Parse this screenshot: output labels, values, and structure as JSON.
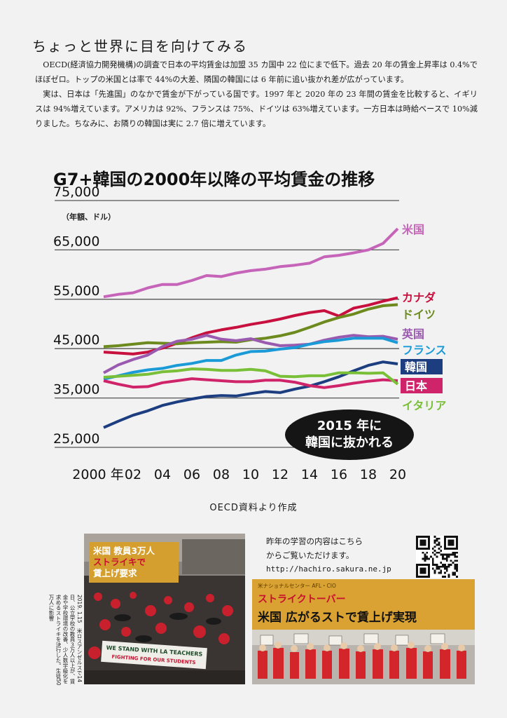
{
  "heading": "ちょっと世界に目を向けてみる",
  "paragraphs": [
    "OECD(経済協力開発機構)の調査で日本の平均賃金は加盟 35 カ国中 22 位にまで低下。過去 20 年の賃金上昇率は 0.4%でほぼゼロ。トップの米国とは率で 44%の大差、隣国の韓国には 6 年前に追い抜かれ差が広がっています。",
    "実は、日本は「先進国」のなかで賃金が下がっている国です。1997 年と 2020 年の 23 年間の賃金を比較すると、イギリスは 94%増えています。アメリカは 92%、フランスは 75%、ドイツは 63%増えています。一方日本は時給ベースで 10%減りました。ちなみに、お隣りの韓国は実に 2.7 倍に増えています。"
  ],
  "chart_data": {
    "type": "line",
    "title": "G7+韓国の2000年以降の平均賃金の推移",
    "unit_label": "（年額、ドル）",
    "ylim": [
      25000,
      75000
    ],
    "y_ticks": [
      75000,
      65000,
      55000,
      45000,
      35000,
      25000
    ],
    "y_tick_labels": [
      "75,000",
      "65,000",
      "55,000",
      "45,000",
      "35,000",
      "25,000"
    ],
    "x": [
      2000,
      2001,
      2002,
      2003,
      2004,
      2005,
      2006,
      2007,
      2008,
      2009,
      2010,
      2011,
      2012,
      2013,
      2014,
      2015,
      2016,
      2017,
      2018,
      2019,
      2020
    ],
    "x_ticks": [
      2000,
      2002,
      2004,
      2006,
      2008,
      2010,
      2012,
      2014,
      2016,
      2018,
      2020
    ],
    "x_tick_labels": [
      "2000 年",
      "02",
      "04",
      "06",
      "08",
      "10",
      "12",
      "14",
      "16",
      "18",
      "20"
    ],
    "series": [
      {
        "name": "米国",
        "color": "#c564b8",
        "values": [
          55500,
          56000,
          56300,
          57300,
          58000,
          58000,
          58800,
          59800,
          59600,
          60300,
          60800,
          61100,
          61600,
          61900,
          62300,
          63600,
          63900,
          64400,
          65000,
          66300,
          69300
        ]
      },
      {
        "name": "カナダ",
        "color": "#c8103e",
        "values": [
          44300,
          44100,
          43900,
          44300,
          45100,
          46100,
          47200,
          48200,
          48800,
          49300,
          49900,
          50400,
          51000,
          51700,
          52300,
          52700,
          51600,
          53200,
          53800,
          54600,
          55300
        ]
      },
      {
        "name": "ドイツ",
        "color": "#6c8a1e",
        "values": [
          45400,
          45600,
          45900,
          46200,
          46100,
          46000,
          46200,
          46300,
          46400,
          46300,
          46800,
          47100,
          47600,
          48300,
          49300,
          50400,
          51300,
          52000,
          53000,
          53700,
          53900
        ]
      },
      {
        "name": "英国",
        "color": "#9a5ab0",
        "values": [
          40100,
          41700,
          42800,
          43700,
          45400,
          46500,
          46900,
          47700,
          46900,
          46600,
          47000,
          46200,
          45600,
          45700,
          45900,
          46700,
          47300,
          47700,
          47400,
          47500,
          46900
        ]
      },
      {
        "name": "フランス",
        "color": "#1a9ad6",
        "values": [
          38800,
          39500,
          40200,
          40700,
          41000,
          41600,
          42000,
          42600,
          42600,
          43700,
          44400,
          44500,
          44900,
          45200,
          45900,
          46400,
          46700,
          47100,
          47100,
          47100,
          46200
        ]
      },
      {
        "name": "韓国",
        "color": "#1c3d80",
        "values": [
          29000,
          30300,
          31500,
          32400,
          33500,
          34200,
          34800,
          35300,
          35500,
          35400,
          35900,
          36300,
          36100,
          36800,
          37400,
          38300,
          39300,
          40500,
          41600,
          42300,
          41900
        ]
      },
      {
        "name": "日本",
        "color": "#d0246a",
        "values": [
          38500,
          37800,
          37200,
          37300,
          38100,
          38500,
          38900,
          38700,
          38500,
          38300,
          38300,
          38600,
          38600,
          38200,
          37500,
          37100,
          37500,
          38000,
          38400,
          38700,
          38500
        ]
      },
      {
        "name": "イタリア",
        "color": "#7abf38",
        "values": [
          39200,
          39400,
          39600,
          39800,
          40300,
          40500,
          40900,
          40800,
          40600,
          40600,
          40800,
          40500,
          39400,
          39300,
          39500,
          39500,
          40100,
          40100,
          40000,
          40100,
          37800
        ]
      }
    ],
    "callout": [
      "2015 年に",
      "韓国に抜かれる"
    ],
    "grid": true
  },
  "source": "OECD資料より作成",
  "photo_caption": {
    "line1": "米国 教員3万人",
    "line2": "ストライキで",
    "line3": "賃上げ要求",
    "banner1": "WE STAND WITH LA TEACHERS",
    "banner2": "FIGHTING FOR OUR STUDENTS"
  },
  "vertical_caption": "2019. 1.15　米ロスアンゼルスで14日、公立学校の教員３万人以上が、賃金や学校環境の改善、少人数学級化を求めるストライキを決行した。生徒50万人に影響",
  "link": {
    "line1": "昨年の学習の内容はこちら",
    "line2": "からご覧いただけます。",
    "url": "http://hachiro.sakura.ne.jp"
  },
  "strike_box": {
    "org": "米ナショナルセンター AFL・CIO",
    "sub": "ストライクトーバー",
    "main": "米国 広がるストで賃上げ実現"
  }
}
